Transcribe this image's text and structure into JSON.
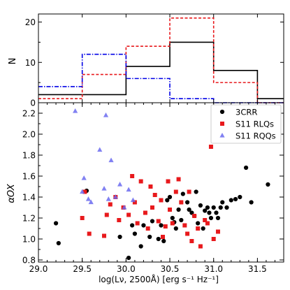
{
  "chart_data": [
    {
      "type": "histogram",
      "ylabel": "N",
      "xlim": [
        29.0,
        31.8
      ],
      "ylim": [
        0,
        22
      ],
      "yticks": [
        0,
        10,
        20
      ],
      "bin_edges": [
        29.0,
        29.5,
        30.0,
        30.5,
        31.0,
        31.5,
        31.8
      ],
      "series": [
        {
          "name": "3CRR",
          "color": "#000000",
          "style": "solid",
          "counts": [
            2,
            2,
            9,
            15,
            8,
            1
          ]
        },
        {
          "name": "S11 RLQs",
          "color": "#e8191c",
          "style": "dashed",
          "counts": [
            1,
            7,
            14,
            21,
            5,
            0
          ]
        },
        {
          "name": "S11 RQQs",
          "color": "#0000e6",
          "style": "dashdot",
          "counts": [
            4,
            12,
            6,
            1,
            0,
            0
          ]
        }
      ]
    },
    {
      "type": "scatter",
      "ylabel": "αOX",
      "xlabel": "log(Lν, 2500Å) [erg s⁻¹ Hz⁻¹]",
      "xlim": [
        29.0,
        31.8
      ],
      "ylim": [
        0.78,
        2.3
      ],
      "xticks": [
        "29.0",
        "29.5",
        "30.0",
        "30.5",
        "31.0",
        "31.5"
      ],
      "yticks": [
        "0.8",
        "1.0",
        "1.2",
        "1.4",
        "1.6",
        "1.8",
        "2.0",
        "2.2"
      ],
      "legend_position": "top-right",
      "series": [
        {
          "name": "3CRR",
          "marker": "circle",
          "color": "#000000",
          "points": [
            [
              29.2,
              1.15
            ],
            [
              29.23,
              0.96
            ],
            [
              29.55,
              1.46
            ],
            [
              29.93,
              1.02
            ],
            [
              30.03,
              0.82
            ],
            [
              30.07,
              1.13
            ],
            [
              30.1,
              1.05
            ],
            [
              30.17,
              0.93
            ],
            [
              30.2,
              1.13
            ],
            [
              30.27,
              1.02
            ],
            [
              30.3,
              1.17
            ],
            [
              30.37,
              1.0
            ],
            [
              30.4,
              1.13
            ],
            [
              30.43,
              0.98
            ],
            [
              30.47,
              1.37
            ],
            [
              30.5,
              1.4
            ],
            [
              30.53,
              1.2
            ],
            [
              30.55,
              1.16
            ],
            [
              30.57,
              1.1
            ],
            [
              30.6,
              1.28
            ],
            [
              30.63,
              1.18
            ],
            [
              30.65,
              1.43
            ],
            [
              30.7,
              1.35
            ],
            [
              30.72,
              1.28
            ],
            [
              30.75,
              1.25
            ],
            [
              30.78,
              1.22
            ],
            [
              30.8,
              1.45
            ],
            [
              30.82,
              1.15
            ],
            [
              30.85,
              1.32
            ],
            [
              30.88,
              1.1
            ],
            [
              30.9,
              1.27
            ],
            [
              30.93,
              1.3
            ],
            [
              30.95,
              1.25
            ],
            [
              30.97,
              1.2
            ],
            [
              31.0,
              1.3
            ],
            [
              31.03,
              1.25
            ],
            [
              31.05,
              1.2
            ],
            [
              31.08,
              1.3
            ],
            [
              31.1,
              1.35
            ],
            [
              31.15,
              1.3
            ],
            [
              31.2,
              1.37
            ],
            [
              31.25,
              1.38
            ],
            [
              31.3,
              1.4
            ],
            [
              31.37,
              1.68
            ],
            [
              31.43,
              1.35
            ],
            [
              31.62,
              1.52
            ]
          ]
        },
        {
          "name": "S11 RLQs",
          "marker": "square",
          "color": "#e8191c",
          "points": [
            [
              29.5,
              1.2
            ],
            [
              29.53,
              1.45
            ],
            [
              29.58,
              1.05
            ],
            [
              29.75,
              1.03
            ],
            [
              29.78,
              1.23
            ],
            [
              29.82,
              1.33
            ],
            [
              29.88,
              1.4
            ],
            [
              29.92,
              1.18
            ],
            [
              29.97,
              1.3
            ],
            [
              30.03,
              1.23
            ],
            [
              30.07,
              1.6
            ],
            [
              30.1,
              1.35
            ],
            [
              30.13,
              1.15
            ],
            [
              30.17,
              1.55
            ],
            [
              30.22,
              1.25
            ],
            [
              30.25,
              1.1
            ],
            [
              30.28,
              1.5
            ],
            [
              30.3,
              1.3
            ],
            [
              30.33,
              1.42
            ],
            [
              30.37,
              1.17
            ],
            [
              30.4,
              1.37
            ],
            [
              30.42,
              1.02
            ],
            [
              30.45,
              1.12
            ],
            [
              30.48,
              1.55
            ],
            [
              30.5,
              1.28
            ],
            [
              30.53,
              1.15
            ],
            [
              30.57,
              1.45
            ],
            [
              30.6,
              1.57
            ],
            [
              30.63,
              1.35
            ],
            [
              30.67,
              1.13
            ],
            [
              30.7,
              1.05
            ],
            [
              30.72,
              1.45
            ],
            [
              30.75,
              0.98
            ],
            [
              30.78,
              1.22
            ],
            [
              30.82,
              1.1
            ],
            [
              30.85,
              0.93
            ],
            [
              30.9,
              1.18
            ],
            [
              30.93,
              1.15
            ],
            [
              30.97,
              1.88
            ],
            [
              31.0,
              1.0
            ],
            [
              31.05,
              1.07
            ]
          ]
        },
        {
          "name": "S11 RQQs",
          "marker": "triangle",
          "color": "#6b6bf0",
          "points": [
            [
              29.42,
              2.22
            ],
            [
              29.5,
              1.45
            ],
            [
              29.52,
              1.58
            ],
            [
              29.57,
              1.38
            ],
            [
              29.6,
              1.35
            ],
            [
              29.7,
              1.85
            ],
            [
              29.75,
              1.48
            ],
            [
              29.77,
              2.18
            ],
            [
              29.8,
              1.38
            ],
            [
              29.83,
              1.75
            ],
            [
              29.88,
              1.4
            ],
            [
              29.93,
              1.52
            ],
            [
              29.98,
              1.3
            ],
            [
              30.03,
              1.47
            ],
            [
              30.08,
              1.37
            ]
          ]
        }
      ]
    }
  ]
}
